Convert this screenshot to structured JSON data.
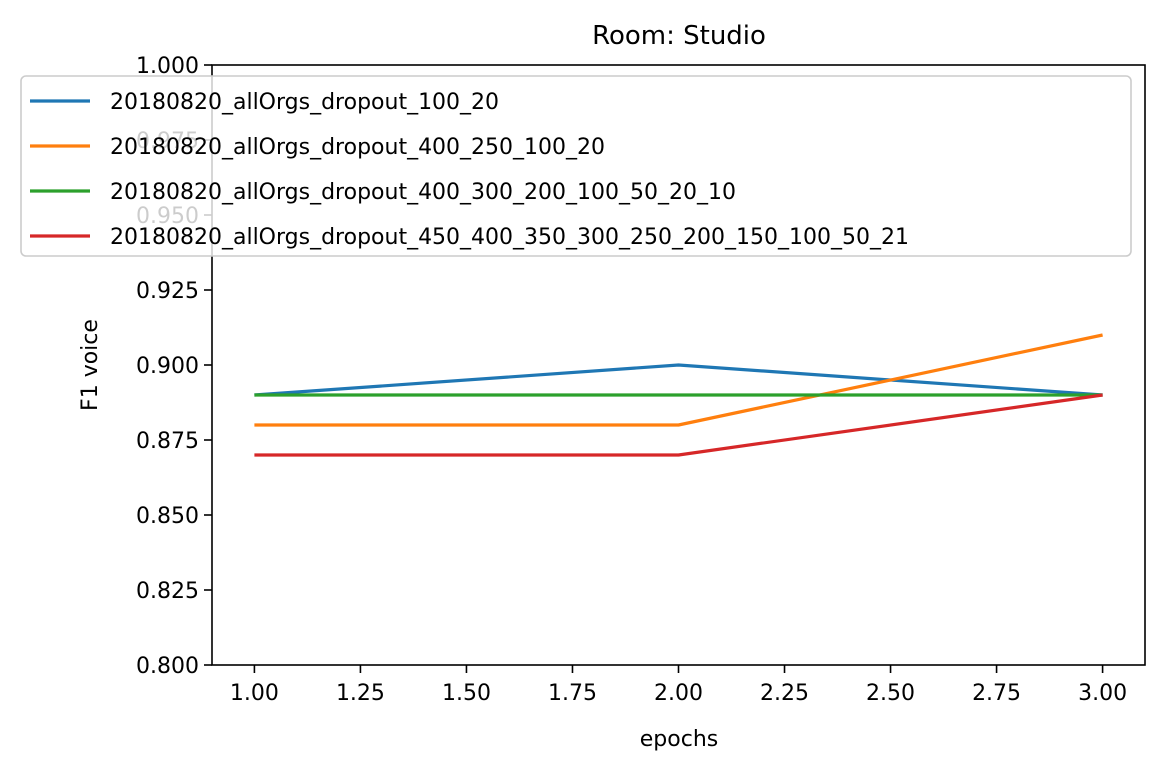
{
  "chart_data": {
    "type": "line",
    "title": "Room: Studio",
    "xlabel": "epochs",
    "ylabel": "F1 voice",
    "xlim": [
      0.9,
      3.1
    ],
    "ylim": [
      0.8,
      1.0
    ],
    "xticks": [
      1.0,
      1.25,
      1.5,
      1.75,
      2.0,
      2.25,
      2.5,
      2.75,
      3.0
    ],
    "xtick_labels": [
      "1.00",
      "1.25",
      "1.50",
      "1.75",
      "2.00",
      "2.25",
      "2.50",
      "2.75",
      "3.00"
    ],
    "yticks": [
      0.8,
      0.825,
      0.85,
      0.875,
      0.9,
      0.925,
      0.95,
      0.975,
      1.0
    ],
    "ytick_labels": [
      "0.800",
      "0.825",
      "0.850",
      "0.875",
      "0.900",
      "0.925",
      "0.950",
      "0.975",
      "1.000"
    ],
    "grid": false,
    "legend_position": "top",
    "x": [
      1,
      2,
      3
    ],
    "series": [
      {
        "name": "20180820_allOrgs_dropout_100_20",
        "values": [
          0.89,
          0.9,
          0.89
        ],
        "color": "#1f77b4"
      },
      {
        "name": "20180820_allOrgs_dropout_400_250_100_20",
        "values": [
          0.88,
          0.88,
          0.91
        ],
        "color": "#ff7f0e"
      },
      {
        "name": "20180820_allOrgs_dropout_400_300_200_100_50_20_10",
        "values": [
          0.89,
          0.89,
          0.89
        ],
        "color": "#2ca02c"
      },
      {
        "name": "20180820_allOrgs_dropout_450_400_350_300_250_200_150_100_50_21",
        "values": [
          0.87,
          0.87,
          0.89
        ],
        "color": "#d62728"
      }
    ]
  }
}
